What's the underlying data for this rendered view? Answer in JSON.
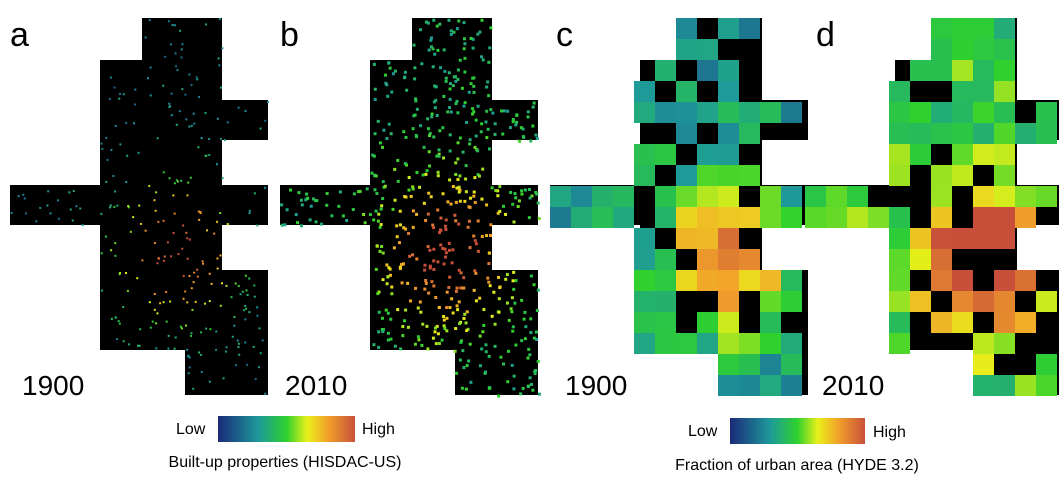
{
  "panels": [
    {
      "label": "a",
      "year": "1900"
    },
    {
      "label": "b",
      "year": "2010"
    },
    {
      "label": "c",
      "year": "1900"
    },
    {
      "label": "d",
      "year": "2010"
    }
  ],
  "legends": [
    {
      "low": "Low",
      "high": "High",
      "caption": "Built-up properties (HISDAC-US)"
    },
    {
      "low": "Low",
      "high": "High",
      "caption": "Fraction of urban area (HYDE 3.2)"
    }
  ]
}
